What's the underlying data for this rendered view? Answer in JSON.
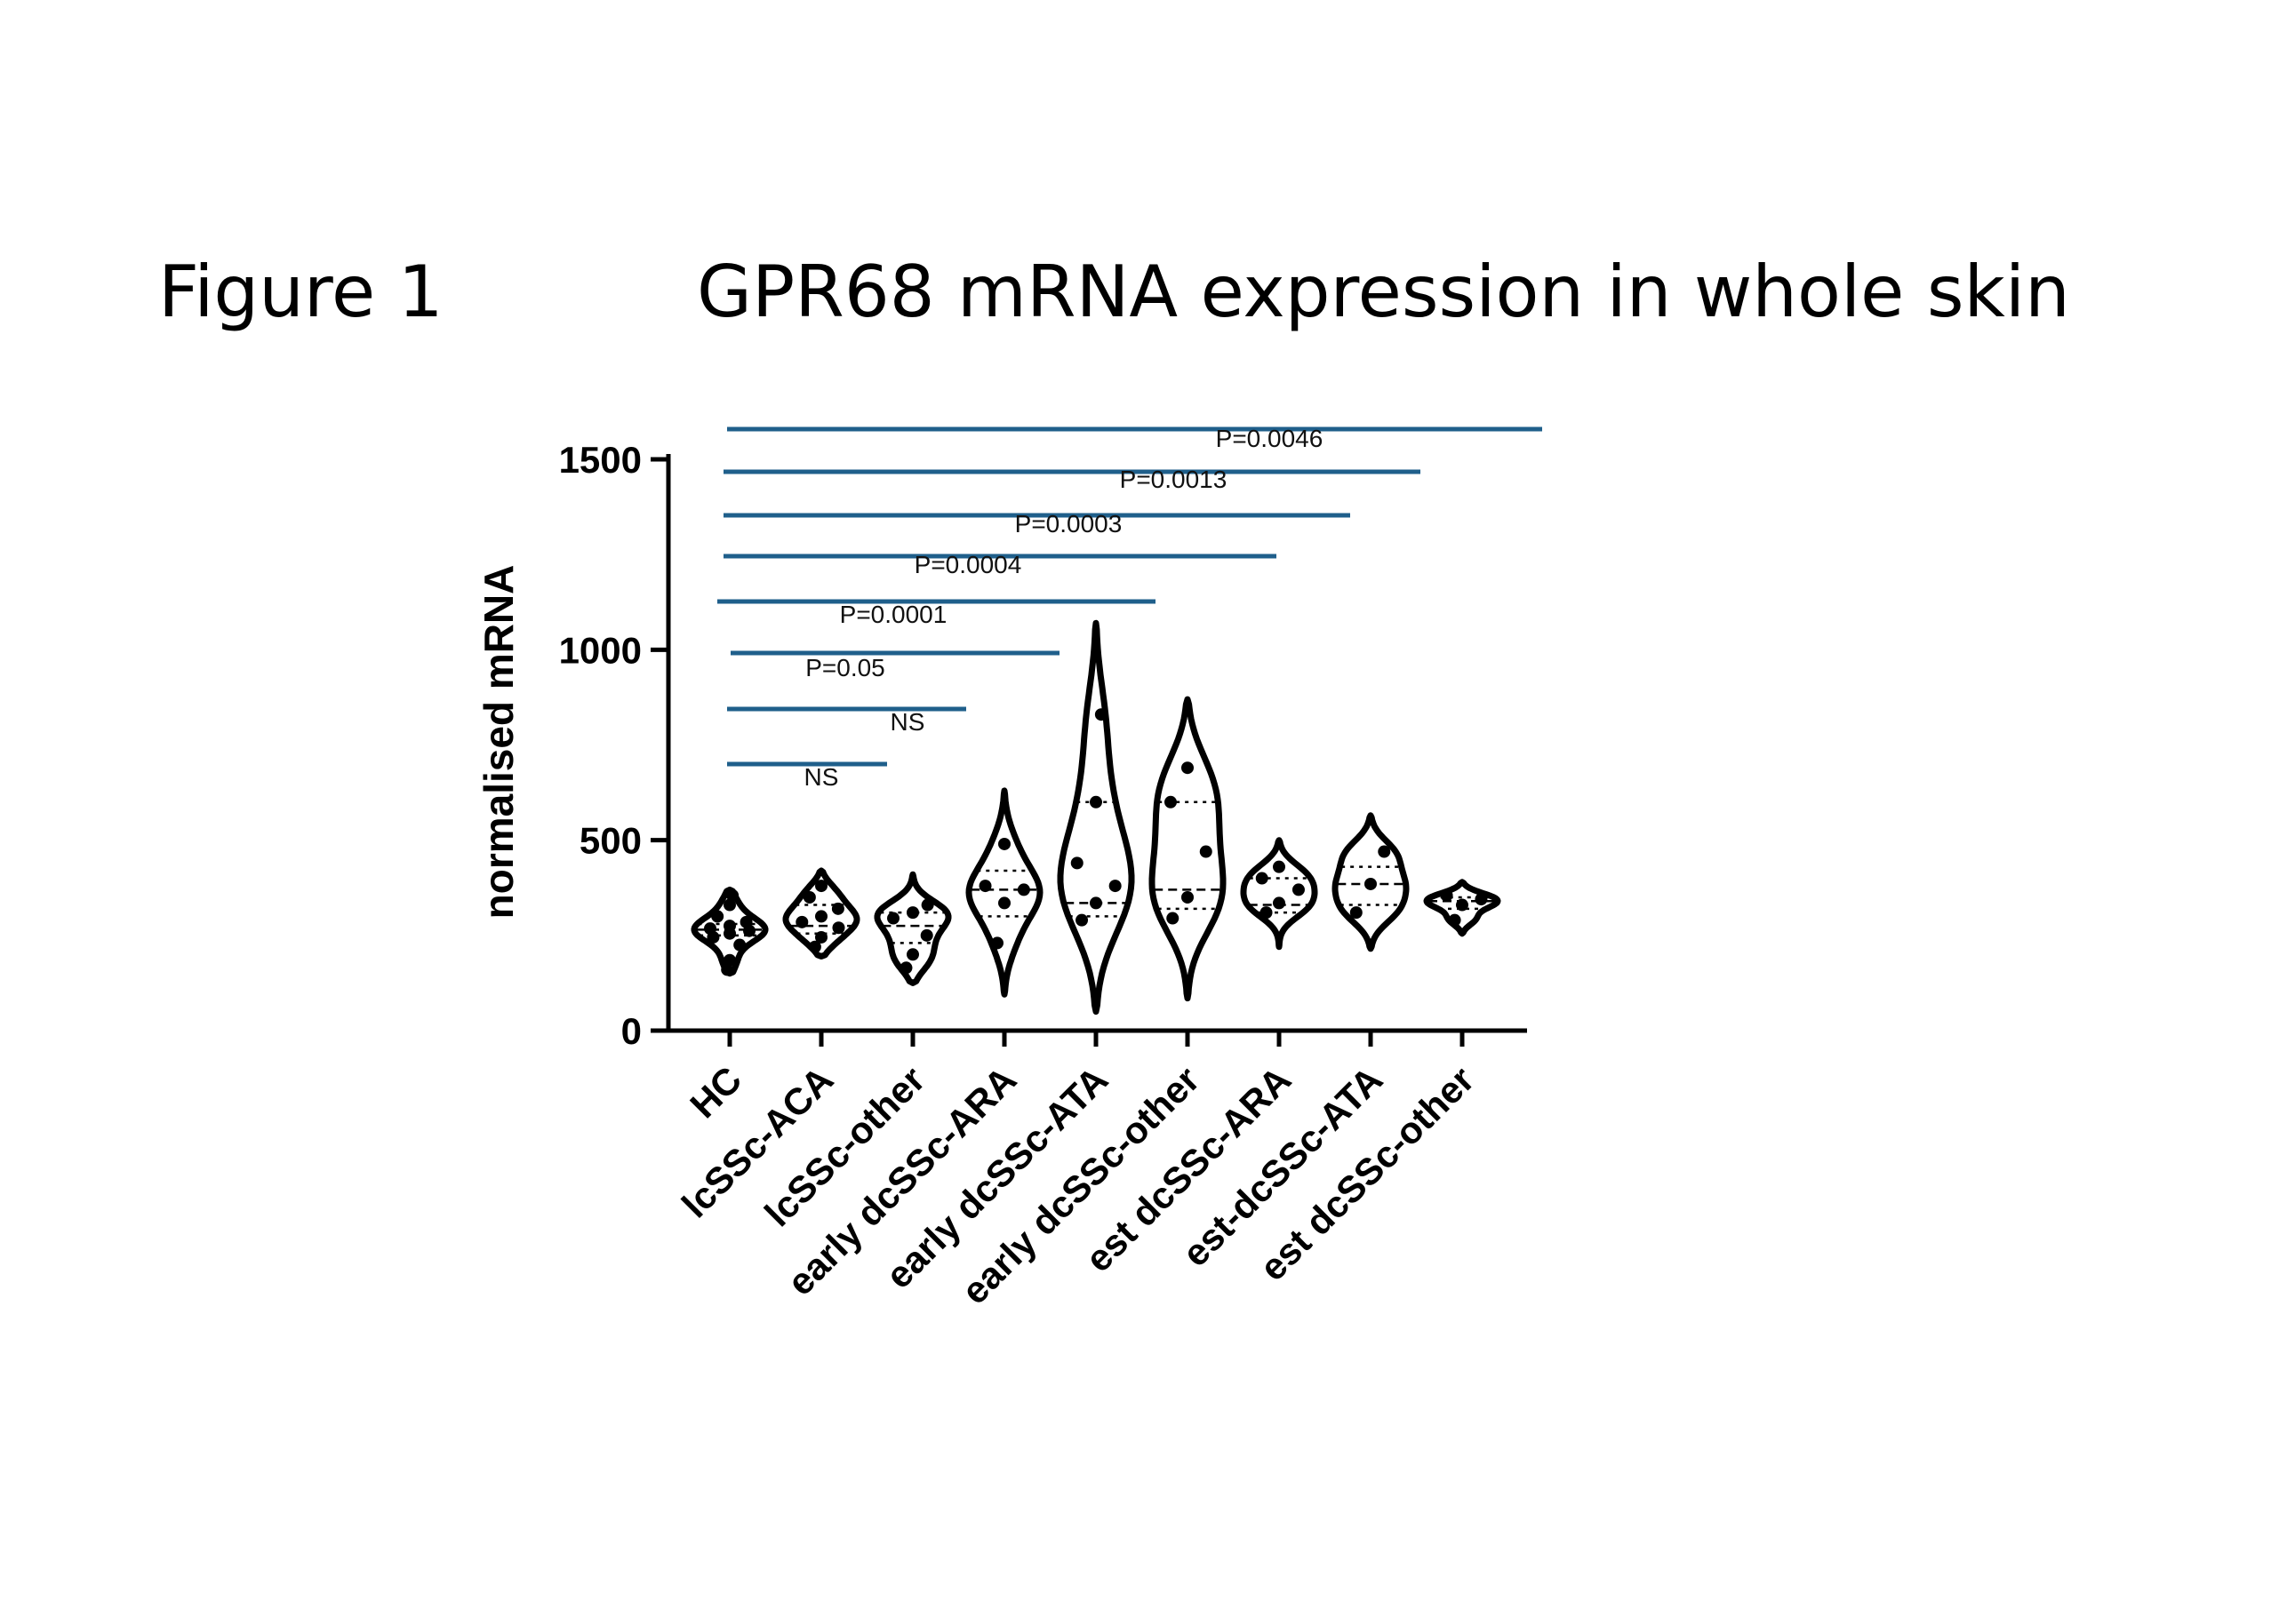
{
  "figure": {
    "label": "Figure 1",
    "title": "GPR68 mRNA expression in whole skin"
  },
  "chart_data": {
    "type": "violin",
    "ylabel": "normalised mRNA",
    "xlabel": "",
    "ylim": [
      0,
      1500
    ],
    "yticks": [
      0,
      500,
      1000,
      1500
    ],
    "grid": false,
    "line_color": "#000000",
    "bracket_color": "#1f5f8b",
    "categories": [
      "HC",
      "lcSSc-ACA",
      "lcSSc-other",
      "early dcSSc-ARA",
      "early dcSSc-ATA",
      "early dcSSc-other",
      "est dcSSc-ARA",
      "est-dcSSc-ATA",
      "est dcSSc-other"
    ],
    "groups": [
      {
        "min": 150,
        "max": 370,
        "median": 265,
        "q1": 250,
        "q3": 280,
        "points": [
          160,
          185,
          225,
          245,
          255,
          262,
          268,
          275,
          285,
          300,
          330,
          355
        ]
      },
      {
        "min": 195,
        "max": 420,
        "median": 275,
        "q1": 255,
        "q3": 330,
        "points": [
          220,
          245,
          270,
          285,
          300,
          320,
          350,
          380
        ]
      },
      {
        "min": 125,
        "max": 410,
        "median": 275,
        "q1": 230,
        "q3": 310,
        "points": [
          165,
          200,
          250,
          295,
          310,
          330
        ]
      },
      {
        "min": 95,
        "max": 630,
        "median": 370,
        "q1": 300,
        "q3": 420,
        "points": [
          230,
          335,
          370,
          380,
          490
        ]
      },
      {
        "min": 50,
        "max": 1070,
        "median": 335,
        "q1": 300,
        "q3": 600,
        "points": [
          290,
          335,
          380,
          440,
          600,
          830
        ]
      },
      {
        "min": 85,
        "max": 870,
        "median": 370,
        "q1": 320,
        "q3": 600,
        "points": [
          295,
          350,
          470,
          600,
          690
        ]
      },
      {
        "min": 220,
        "max": 500,
        "median": 330,
        "q1": 310,
        "q3": 400,
        "points": [
          310,
          335,
          370,
          400,
          430
        ]
      },
      {
        "min": 215,
        "max": 565,
        "median": 385,
        "q1": 330,
        "q3": 430,
        "points": [
          310,
          385,
          470
        ]
      },
      {
        "min": 255,
        "max": 390,
        "median": 340,
        "q1": 320,
        "q3": 350,
        "points": [
          290,
          330,
          345,
          355
        ]
      }
    ],
    "comparisons": [
      {
        "from": 0,
        "to": 1,
        "label": "NS"
      },
      {
        "from": 0,
        "to": 2,
        "label": "NS"
      },
      {
        "from": 0,
        "to": 3,
        "label": "P=0.05"
      },
      {
        "from": 0,
        "to": 4,
        "label": "P=0.0001"
      },
      {
        "from": 0,
        "to": 5,
        "label": "P=0.0004"
      },
      {
        "from": 0,
        "to": 6,
        "label": "P=0.0003"
      },
      {
        "from": 0,
        "to": 7,
        "label": "P=0.0013"
      },
      {
        "from": 0,
        "to": 8,
        "label": "P=0.0046"
      }
    ]
  }
}
